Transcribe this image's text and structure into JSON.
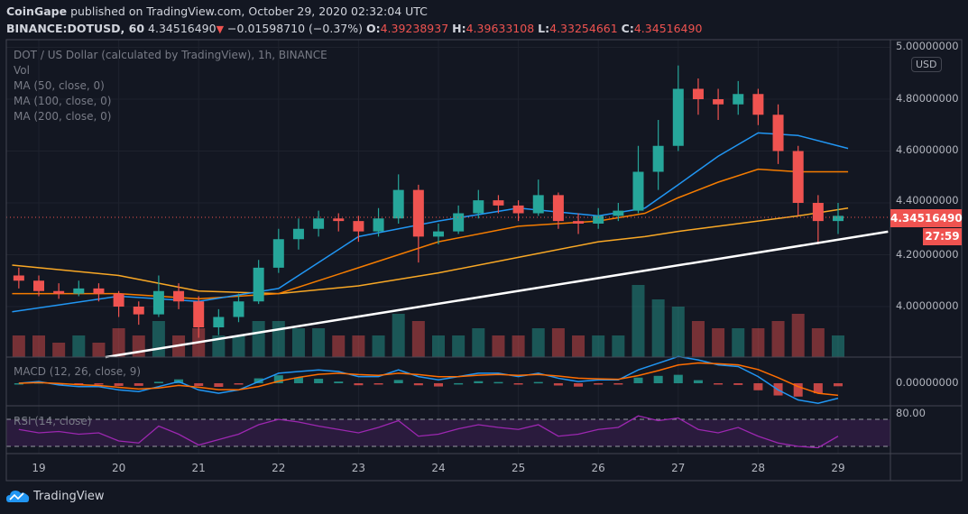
{
  "header": {
    "publisher": "CoinGape",
    "published_text": "published on TradingView.com, October 29, 2020 02:32:04 UTC",
    "symbol": "BINANCE:DOTUSD, 60",
    "last": "4.34516490",
    "change": "−0.01598710 (−0.37%)",
    "o_label": "O:",
    "o": "4.39238937",
    "h_label": "H:",
    "h": "4.39633108",
    "l_label": "L:",
    "l": "4.33254661",
    "c_label": "C:",
    "c": "4.34516490"
  },
  "legend": {
    "title": "DOT / US Dollar (calculated by TradingView), 1h, BINANCE",
    "vol": "Vol",
    "ma50": "MA (50, close, 0)",
    "ma100": "MA (100, close, 0)",
    "ma200": "MA (200, close, 0)",
    "macd": "MACD (12, 26, close, 9)",
    "rsi": "RSI (14, close)"
  },
  "axis": {
    "currency": "USD",
    "price_ticks": [
      "5.00000000",
      "4.80000000",
      "4.60000000",
      "4.40000000",
      "4.20000000",
      "4.00000000"
    ],
    "macd_tick": "0.00000000",
    "rsi_tick": "80.00",
    "time_ticks": [
      "19",
      "20",
      "21",
      "22",
      "23",
      "24",
      "25",
      "26",
      "27",
      "28",
      "29"
    ],
    "last_price_label": "4.34516490",
    "countdown": "27:59"
  },
  "colors": {
    "background": "#131722",
    "up": "#26a69a",
    "down": "#ef5350",
    "ma50": "#2196f3",
    "ma100": "#f57c00",
    "ma200": "#f9a825",
    "trendline": "#ffffff",
    "macd": "#2196f3",
    "signal": "#ff6d00",
    "rsi": "#9c27b0",
    "rsi_band": "#2a1b3d"
  },
  "chart_data": {
    "type": "candlestick",
    "title": "DOT / US Dollar (calculated by TradingView), 1h, BINANCE",
    "ylim": [
      3.8,
      5.0
    ],
    "xlim": [
      "2020-10-18T15:00",
      "2020-10-29T15:00"
    ],
    "grid": true,
    "start": "2020-10-18T18:00",
    "interval_hours": 6,
    "candles_ohlcv": [
      [
        4.12,
        4.15,
        4.07,
        4.1,
        3
      ],
      [
        4.1,
        4.12,
        4.04,
        4.06,
        3
      ],
      [
        4.06,
        4.09,
        4.03,
        4.05,
        2
      ],
      [
        4.05,
        4.1,
        4.04,
        4.07,
        3
      ],
      [
        4.07,
        4.09,
        4.02,
        4.05,
        2
      ],
      [
        4.05,
        4.06,
        3.96,
        4.0,
        4
      ],
      [
        4.0,
        4.02,
        3.93,
        3.97,
        3
      ],
      [
        3.97,
        4.12,
        3.96,
        4.06,
        5
      ],
      [
        4.06,
        4.09,
        3.99,
        4.02,
        3
      ],
      [
        4.02,
        4.04,
        3.88,
        3.92,
        4
      ],
      [
        3.92,
        3.99,
        3.89,
        3.96,
        3
      ],
      [
        3.96,
        4.05,
        3.94,
        4.02,
        3
      ],
      [
        4.02,
        4.18,
        4.01,
        4.15,
        5
      ],
      [
        4.15,
        4.3,
        4.13,
        4.26,
        5
      ],
      [
        4.26,
        4.34,
        4.22,
        4.3,
        4
      ],
      [
        4.3,
        4.37,
        4.27,
        4.34,
        4
      ],
      [
        4.34,
        4.36,
        4.29,
        4.33,
        3
      ],
      [
        4.33,
        4.35,
        4.25,
        4.29,
        3
      ],
      [
        4.29,
        4.38,
        4.27,
        4.34,
        3
      ],
      [
        4.34,
        4.51,
        4.32,
        4.45,
        6
      ],
      [
        4.45,
        4.47,
        4.17,
        4.27,
        5
      ],
      [
        4.27,
        4.32,
        4.24,
        4.29,
        3
      ],
      [
        4.29,
        4.39,
        4.28,
        4.36,
        3
      ],
      [
        4.36,
        4.45,
        4.34,
        4.41,
        4
      ],
      [
        4.41,
        4.43,
        4.36,
        4.39,
        3
      ],
      [
        4.39,
        4.41,
        4.33,
        4.36,
        3
      ],
      [
        4.36,
        4.49,
        4.35,
        4.43,
        4
      ],
      [
        4.43,
        4.44,
        4.3,
        4.33,
        4
      ],
      [
        4.33,
        4.36,
        4.28,
        4.32,
        3
      ],
      [
        4.32,
        4.38,
        4.3,
        4.35,
        3
      ],
      [
        4.35,
        4.4,
        4.33,
        4.37,
        3
      ],
      [
        4.37,
        4.62,
        4.36,
        4.52,
        10
      ],
      [
        4.52,
        4.72,
        4.45,
        4.62,
        8
      ],
      [
        4.62,
        4.93,
        4.6,
        4.84,
        7
      ],
      [
        4.84,
        4.88,
        4.74,
        4.8,
        5
      ],
      [
        4.8,
        4.84,
        4.72,
        4.78,
        4
      ],
      [
        4.78,
        4.87,
        4.74,
        4.82,
        4
      ],
      [
        4.82,
        4.84,
        4.7,
        4.74,
        4
      ],
      [
        4.74,
        4.78,
        4.55,
        4.6,
        5
      ],
      [
        4.6,
        4.62,
        4.35,
        4.4,
        6
      ],
      [
        4.4,
        4.43,
        4.24,
        4.33,
        4
      ],
      [
        4.33,
        4.4,
        4.28,
        4.35,
        3
      ]
    ],
    "moving_averages": {
      "times": [
        "2020-10-18T16:00",
        "2020-10-20T00:00",
        "2020-10-21T00:00",
        "2020-10-22T00:00",
        "2020-10-23T00:00",
        "2020-10-24T00:00",
        "2020-10-25T00:00",
        "2020-10-26T00:00",
        "2020-10-26T14:00",
        "2020-10-27T00:00",
        "2020-10-27T12:00",
        "2020-10-28T00:00",
        "2020-10-28T12:00",
        "2020-10-29T03:00"
      ],
      "ma50": [
        3.98,
        4.04,
        4.02,
        4.07,
        4.27,
        4.33,
        4.38,
        4.35,
        4.38,
        4.47,
        4.58,
        4.67,
        4.66,
        4.61
      ],
      "ma100": [
        4.05,
        4.05,
        4.03,
        4.05,
        4.15,
        4.25,
        4.31,
        4.33,
        4.36,
        4.42,
        4.48,
        4.53,
        4.52,
        4.52
      ],
      "ma200": [
        4.16,
        4.12,
        4.06,
        4.05,
        4.08,
        4.13,
        4.19,
        4.25,
        4.27,
        4.29,
        4.31,
        4.33,
        4.35,
        4.38
      ]
    },
    "trendline": {
      "from": [
        "2020-10-19T20:00",
        3.805
      ],
      "to": [
        "2020-10-29T15:00",
        4.289
      ]
    },
    "macd": [
      0,
      0.005,
      -0.005,
      -0.01,
      -0.01,
      -0.02,
      -0.025,
      -0.01,
      0.005,
      -0.02,
      -0.03,
      -0.02,
      0.005,
      0.03,
      0.035,
      0.04,
      0.035,
      0.02,
      0.02,
      0.04,
      0.02,
      0.01,
      0.02,
      0.03,
      0.03,
      0.02,
      0.03,
      0.015,
      0.005,
      0.01,
      0.01,
      0.04,
      0.06,
      0.08,
      0.07,
      0.055,
      0.05,
      0.02,
      -0.02,
      -0.05,
      -0.06,
      -0.045
    ],
    "rsi": [
      55,
      50,
      52,
      48,
      50,
      38,
      35,
      60,
      48,
      32,
      40,
      48,
      62,
      70,
      66,
      60,
      55,
      50,
      58,
      68,
      45,
      48,
      56,
      62,
      58,
      55,
      62,
      45,
      48,
      55,
      58,
      75,
      68,
      72,
      55,
      50,
      58,
      45,
      35,
      30,
      28,
      45
    ],
    "rsi_bands": [
      30,
      70
    ]
  }
}
